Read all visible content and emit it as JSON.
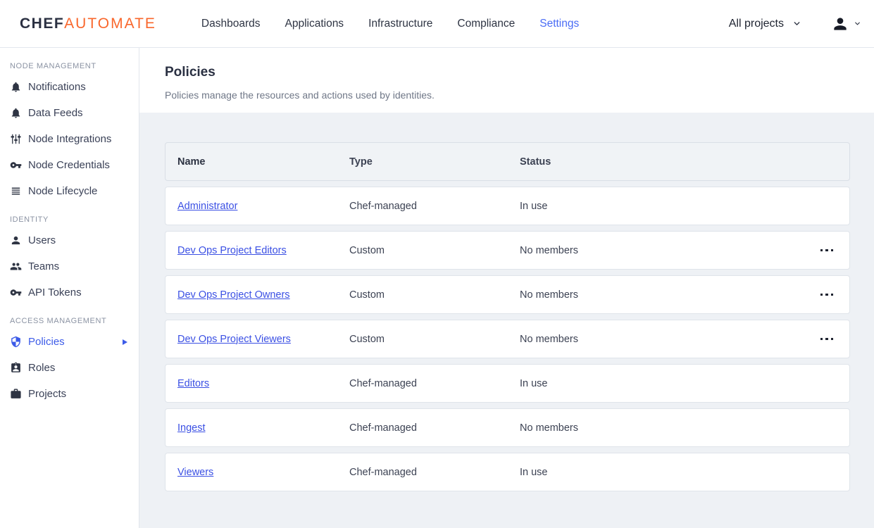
{
  "brand": {
    "chef": "CHEF",
    "automate": "AUTOMATE"
  },
  "navbar": {
    "links": [
      {
        "label": "Dashboards",
        "active": false
      },
      {
        "label": "Applications",
        "active": false
      },
      {
        "label": "Infrastructure",
        "active": false
      },
      {
        "label": "Compliance",
        "active": false
      },
      {
        "label": "Settings",
        "active": true
      }
    ],
    "projects_filter": {
      "label": "All projects"
    }
  },
  "sidebar": {
    "sections": [
      {
        "heading": "NODE MANAGEMENT",
        "items": [
          {
            "label": "Notifications",
            "icon": "bell-icon",
            "active": false
          },
          {
            "label": "Data Feeds",
            "icon": "bell-icon",
            "active": false
          },
          {
            "label": "Node Integrations",
            "icon": "sliders-icon",
            "active": false
          },
          {
            "label": "Node Credentials",
            "icon": "key-icon",
            "active": false
          },
          {
            "label": "Node Lifecycle",
            "icon": "list-icon",
            "active": false
          }
        ]
      },
      {
        "heading": "IDENTITY",
        "items": [
          {
            "label": "Users",
            "icon": "person-icon",
            "active": false
          },
          {
            "label": "Teams",
            "icon": "people-icon",
            "active": false
          },
          {
            "label": "API Tokens",
            "icon": "key-icon",
            "active": false
          }
        ]
      },
      {
        "heading": "ACCESS MANAGEMENT",
        "items": [
          {
            "label": "Policies",
            "icon": "shield-icon",
            "active": true
          },
          {
            "label": "Roles",
            "icon": "badge-icon",
            "active": false
          },
          {
            "label": "Projects",
            "icon": "briefcase-icon",
            "active": false
          }
        ]
      }
    ]
  },
  "page": {
    "title": "Policies",
    "subtitle": "Policies manage the resources and actions used by identities."
  },
  "table": {
    "columns": [
      "Name",
      "Type",
      "Status"
    ],
    "rows": [
      {
        "name": "Administrator",
        "type": "Chef-managed",
        "status": "In use",
        "menu": false
      },
      {
        "name": "Dev Ops Project Editors",
        "type": "Custom",
        "status": "No members",
        "menu": true
      },
      {
        "name": "Dev Ops Project Owners",
        "type": "Custom",
        "status": "No members",
        "menu": true
      },
      {
        "name": "Dev Ops Project Viewers",
        "type": "Custom",
        "status": "No members",
        "menu": true
      },
      {
        "name": "Editors",
        "type": "Chef-managed",
        "status": "In use",
        "menu": false
      },
      {
        "name": "Ingest",
        "type": "Chef-managed",
        "status": "No members",
        "menu": false
      },
      {
        "name": "Viewers",
        "type": "Chef-managed",
        "status": "In use",
        "menu": false
      }
    ]
  },
  "colors": {
    "accent_blue": "#3c5be8",
    "link_blue": "#3b50e4",
    "brand_orange": "#f9672c",
    "dark_navy": "#2b3042",
    "content_bg": "#eef1f5"
  }
}
